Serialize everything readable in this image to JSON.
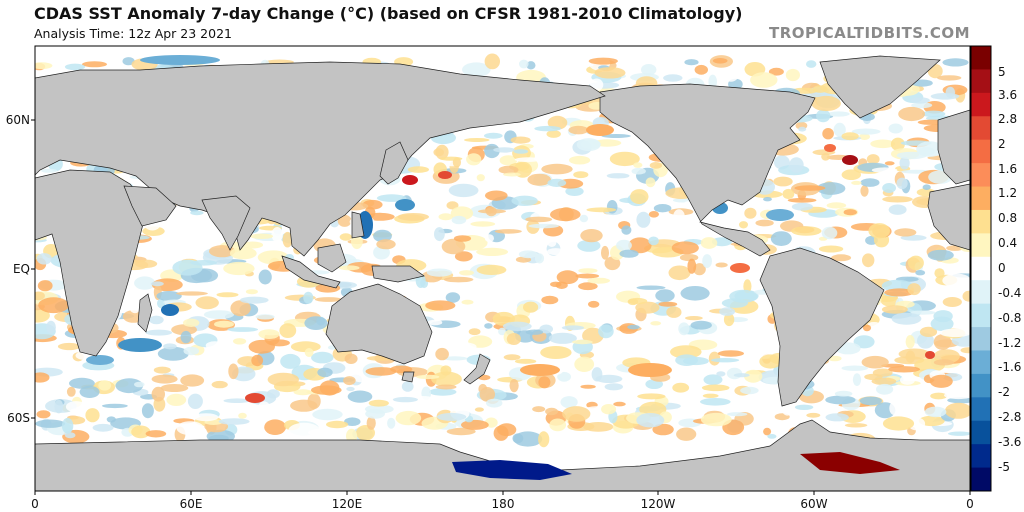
{
  "header": {
    "title": "CDAS SST Anomaly 7-day Change (°C) (based on CFSR 1981-2010 Climatology)",
    "subtitle": "Analysis Time: 12z Apr 23 2021",
    "watermark": "TROPICALTIDBITS.COM"
  },
  "map": {
    "lon_labels": [
      "0",
      "60E",
      "120E",
      "180",
      "120W",
      "60W",
      "0"
    ],
    "lat_labels": [
      "60N",
      "EQ",
      "60S"
    ],
    "land_color": "#c3c3c3",
    "ocean_color": "#ffffff"
  },
  "colorbar": {
    "labels": [
      "5",
      "3.6",
      "2.8",
      "2",
      "1.6",
      "1.2",
      "0.8",
      "0.4",
      "0",
      "-0.4",
      "-0.8",
      "-1.2",
      "-1.6",
      "-2",
      "-2.8",
      "-3.6",
      "-5"
    ],
    "colors": [
      "#7a0000",
      "#a50f15",
      "#cb181d",
      "#e34a33",
      "#f46d43",
      "#fc8d59",
      "#fdae61",
      "#fee090",
      "#fff6c0",
      "#ffffff",
      "#e0f3f8",
      "#bfe6f2",
      "#9ecae1",
      "#6baed6",
      "#4292c6",
      "#2171b5",
      "#08519c",
      "#002a8c",
      "#000a66"
    ]
  }
}
